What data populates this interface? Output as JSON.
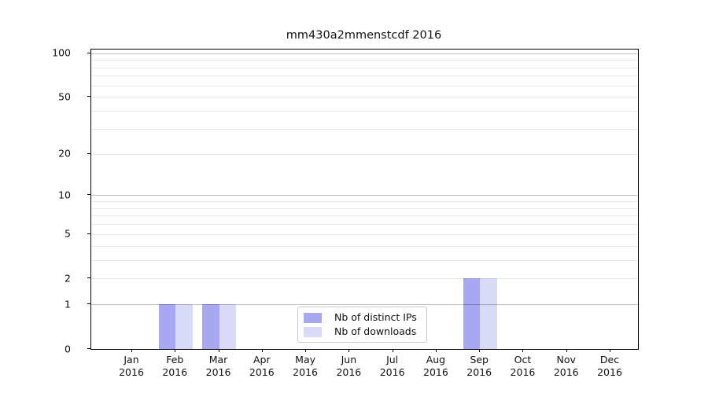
{
  "chart_data": {
    "type": "bar",
    "title": "mm430a2mmenstcdf 2016",
    "year_label": "2016",
    "categories": [
      "Jan",
      "Feb",
      "Mar",
      "Apr",
      "May",
      "Jun",
      "Jul",
      "Aug",
      "Sep",
      "Oct",
      "Nov",
      "Dec"
    ],
    "series": [
      {
        "name": "Nb of distinct IPs",
        "color": "#a7a7f2",
        "values": [
          0,
          1,
          1,
          0,
          0,
          0,
          0,
          0,
          2,
          0,
          0,
          0
        ]
      },
      {
        "name": "Nb of downloads",
        "color": "#d9d9f8",
        "values": [
          0,
          1,
          1,
          0,
          0,
          0,
          0,
          0,
          2,
          0,
          0,
          0
        ]
      }
    ],
    "xlabel": "",
    "ylabel": "",
    "yscale": "log1p",
    "ylim": [
      0,
      106
    ],
    "yticks": [
      0,
      1,
      2,
      5,
      10,
      20,
      50,
      100
    ],
    "major_gridlines": [
      1,
      10,
      100
    ],
    "minor_gridlines": [
      2,
      3,
      4,
      5,
      6,
      7,
      8,
      9,
      20,
      30,
      40,
      50,
      60,
      70,
      80,
      90
    ],
    "grid": "horizontal",
    "legend_position": "inside-bottom-center",
    "colors": {
      "major_grid": "rgba(0,0,0,0.24)",
      "minor_grid": "rgba(0,0,0,0.09)",
      "spine": "#000000",
      "text": "#111111"
    }
  }
}
